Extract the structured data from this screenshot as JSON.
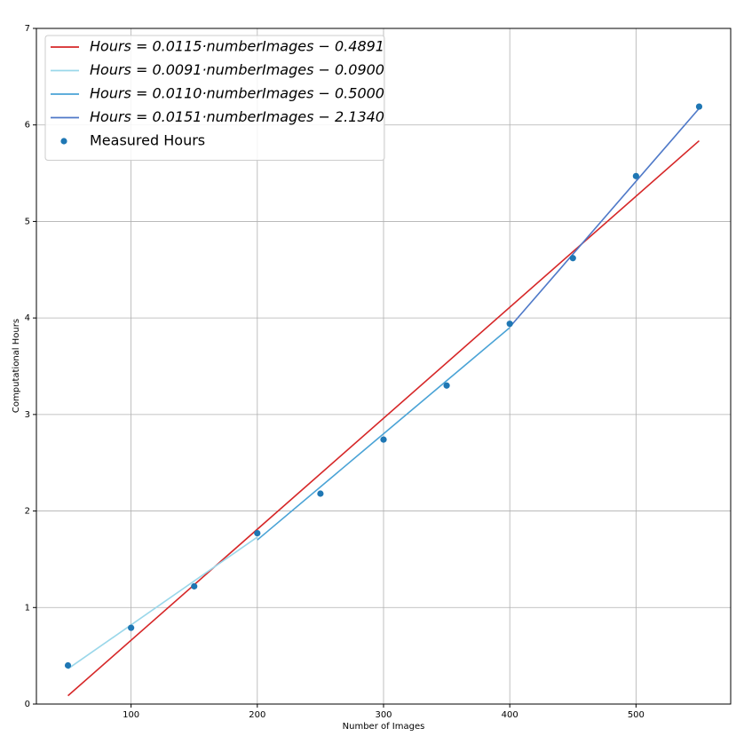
{
  "chart_data": {
    "type": "line",
    "x_label": "Number of Images",
    "y_label": "Computational Hours",
    "xlim": [
      25,
      575
    ],
    "ylim": [
      0,
      7
    ],
    "xticks": [
      100,
      200,
      300,
      400,
      500
    ],
    "yticks": [
      0,
      1,
      2,
      3,
      4,
      5,
      6,
      7
    ],
    "grid": true,
    "legend": "upper-left",
    "series": [
      {
        "type": "line",
        "name": "Hours = 0.0115·numberImages − 0.4891",
        "color": "#d62728",
        "x": [
          50,
          550
        ],
        "values": [
          0.0859,
          5.8359
        ]
      },
      {
        "type": "line",
        "name": "Hours = 0.0091·numberImages − 0.0900",
        "color": "#9ad7ea",
        "x": [
          50,
          200
        ],
        "values": [
          0.365,
          1.73
        ]
      },
      {
        "type": "line",
        "name": "Hours = 0.0110·numberImages − 0.5000",
        "color": "#4aa3d6",
        "x": [
          200,
          400
        ],
        "values": [
          1.7,
          3.9
        ]
      },
      {
        "type": "line",
        "name": "Hours = 0.0151·numberImages − 2.1340",
        "color": "#4f79c8",
        "x": [
          400,
          550
        ],
        "values": [
          3.906,
          6.171
        ]
      },
      {
        "type": "scatter",
        "name": "Measured Hours",
        "color": "#1f77b4",
        "x": [
          50,
          100,
          150,
          200,
          250,
          300,
          350,
          400,
          450,
          500,
          550
        ],
        "values": [
          0.4,
          0.79,
          1.22,
          1.77,
          2.18,
          2.74,
          3.3,
          3.94,
          4.62,
          5.47,
          6.19
        ]
      }
    ]
  }
}
